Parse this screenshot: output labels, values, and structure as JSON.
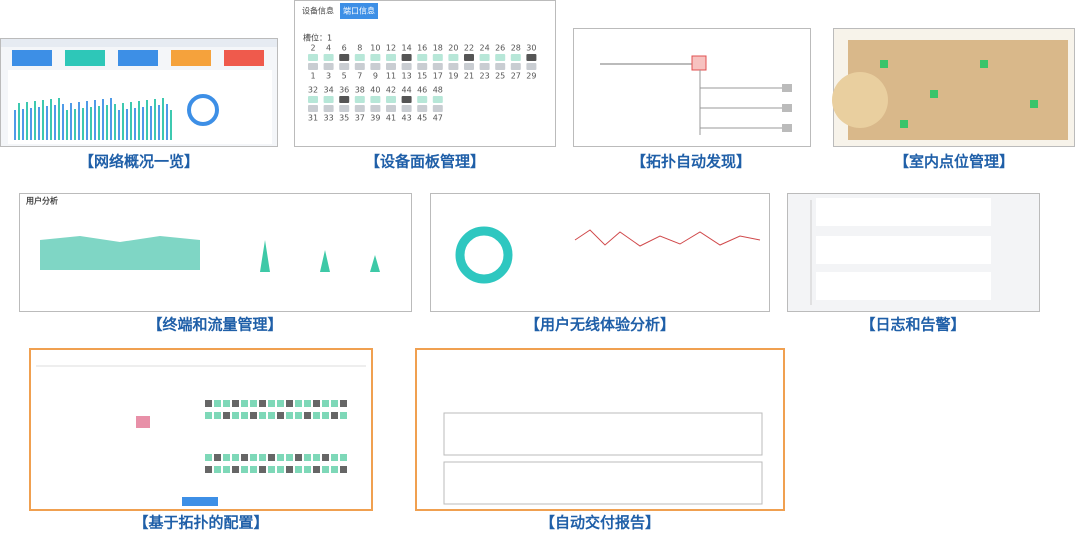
{
  "captions": [
    "【网络概况一览】",
    "【设备面板管理】",
    "【拓扑自动发现】",
    "【室内点位管理】",
    "【终端和流量管理】",
    "【用户无线体验分析】",
    "【日志和告警】",
    "【基于拓扑的配置】",
    "【自动交付报告】"
  ],
  "device_panel": {
    "tabs": [
      "设备信息",
      "端口信息"
    ],
    "slot": "槽位：1",
    "rows": [
      {
        "top": [
          2,
          4,
          6,
          8,
          10,
          12,
          14,
          16,
          18,
          20,
          22,
          24,
          26,
          28,
          30
        ],
        "bottom": [
          1,
          3,
          5,
          7,
          9,
          11,
          13,
          15,
          17,
          19,
          21,
          23,
          25,
          27,
          29
        ]
      },
      {
        "top": [
          32,
          34,
          36,
          38,
          40,
          42,
          44,
          46,
          48
        ],
        "bottom": [
          31,
          33,
          35,
          37,
          39,
          41,
          43,
          45,
          47
        ]
      }
    ]
  },
  "user_analysis": {
    "title": "用户分析"
  }
}
